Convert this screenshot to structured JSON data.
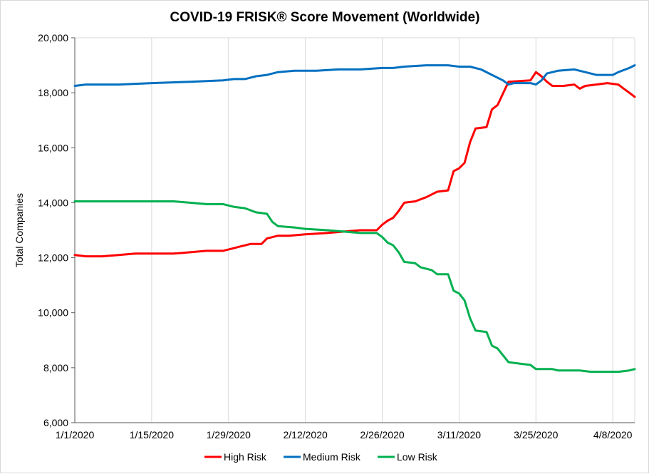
{
  "chart_data": {
    "type": "line",
    "title": "COVID-19 FRISK® Score Movement (Worldwide)",
    "xlabel": "",
    "ylabel": "Total Companies",
    "ylim": [
      6000,
      20000
    ],
    "yticks": [
      6000,
      8000,
      10000,
      12000,
      14000,
      16000,
      18000,
      20000
    ],
    "ytick_labels": [
      "6,000",
      "8,000",
      "10,000",
      "12,000",
      "14,000",
      "16,000",
      "18,000",
      "20,000"
    ],
    "x_start": "1/1/2020",
    "x_end": "4/12/2020",
    "xticks": [
      "1/1/2020",
      "1/15/2020",
      "1/29/2020",
      "2/12/2020",
      "2/26/2020",
      "3/11/2020",
      "3/25/2020",
      "4/8/2020"
    ],
    "grid": "vertical",
    "legend": "bottom",
    "series": [
      {
        "name": "High Risk",
        "color": "#ff0000",
        "points": [
          [
            "1/1/2020",
            12100
          ],
          [
            "1/3/2020",
            12050
          ],
          [
            "1/6/2020",
            12050
          ],
          [
            "1/9/2020",
            12100
          ],
          [
            "1/12/2020",
            12150
          ],
          [
            "1/15/2020",
            12150
          ],
          [
            "1/19/2020",
            12150
          ],
          [
            "1/22/2020",
            12200
          ],
          [
            "1/25/2020",
            12250
          ],
          [
            "1/28/2020",
            12250
          ],
          [
            "1/30/2020",
            12350
          ],
          [
            "1/31/2020",
            12400
          ],
          [
            "2/2/2020",
            12500
          ],
          [
            "2/4/2020",
            12500
          ],
          [
            "2/5/2020",
            12700
          ],
          [
            "2/7/2020",
            12800
          ],
          [
            "2/9/2020",
            12800
          ],
          [
            "2/12/2020",
            12850
          ],
          [
            "2/16/2020",
            12900
          ],
          [
            "2/19/2020",
            12950
          ],
          [
            "2/22/2020",
            13000
          ],
          [
            "2/25/2020",
            13000
          ],
          [
            "2/26/2020",
            13200
          ],
          [
            "2/27/2020",
            13350
          ],
          [
            "2/28/2020",
            13450
          ],
          [
            "2/29/2020",
            13700
          ],
          [
            "3/1/2020",
            14000
          ],
          [
            "3/3/2020",
            14050
          ],
          [
            "3/5/2020",
            14200
          ],
          [
            "3/7/2020",
            14400
          ],
          [
            "3/9/2020",
            14450
          ],
          [
            "3/10/2020",
            15150
          ],
          [
            "3/11/2020",
            15250
          ],
          [
            "3/12/2020",
            15450
          ],
          [
            "3/13/2020",
            16200
          ],
          [
            "3/14/2020",
            16700
          ],
          [
            "3/16/2020",
            16750
          ],
          [
            "3/17/2020",
            17400
          ],
          [
            "3/18/2020",
            17550
          ],
          [
            "3/20/2020",
            18400
          ],
          [
            "3/24/2020",
            18450
          ],
          [
            "3/25/2020",
            18750
          ],
          [
            "3/26/2020",
            18600
          ],
          [
            "3/27/2020",
            18400
          ],
          [
            "3/28/2020",
            18250
          ],
          [
            "3/30/2020",
            18250
          ],
          [
            "4/1/2020",
            18300
          ],
          [
            "4/2/2020",
            18150
          ],
          [
            "4/3/2020",
            18250
          ],
          [
            "4/5/2020",
            18300
          ],
          [
            "4/7/2020",
            18350
          ],
          [
            "4/9/2020",
            18300
          ],
          [
            "4/10/2020",
            18150
          ],
          [
            "4/11/2020",
            18000
          ],
          [
            "4/12/2020",
            17850
          ]
        ]
      },
      {
        "name": "Medium Risk",
        "color": "#0070c0",
        "points": [
          [
            "1/1/2020",
            18250
          ],
          [
            "1/3/2020",
            18300
          ],
          [
            "1/9/2020",
            18300
          ],
          [
            "1/15/2020",
            18350
          ],
          [
            "1/22/2020",
            18400
          ],
          [
            "1/28/2020",
            18450
          ],
          [
            "1/30/2020",
            18500
          ],
          [
            "2/1/2020",
            18500
          ],
          [
            "2/3/2020",
            18600
          ],
          [
            "2/5/2020",
            18650
          ],
          [
            "2/7/2020",
            18750
          ],
          [
            "2/10/2020",
            18800
          ],
          [
            "2/14/2020",
            18800
          ],
          [
            "2/18/2020",
            18850
          ],
          [
            "2/22/2020",
            18850
          ],
          [
            "2/26/2020",
            18900
          ],
          [
            "2/28/2020",
            18900
          ],
          [
            "3/1/2020",
            18950
          ],
          [
            "3/5/2020",
            19000
          ],
          [
            "3/9/2020",
            19000
          ],
          [
            "3/11/2020",
            18950
          ],
          [
            "3/13/2020",
            18950
          ],
          [
            "3/15/2020",
            18850
          ],
          [
            "3/17/2020",
            18650
          ],
          [
            "3/19/2020",
            18450
          ],
          [
            "3/20/2020",
            18300
          ],
          [
            "3/21/2020",
            18350
          ],
          [
            "3/24/2020",
            18350
          ],
          [
            "3/25/2020",
            18300
          ],
          [
            "3/26/2020",
            18450
          ],
          [
            "3/27/2020",
            18700
          ],
          [
            "3/29/2020",
            18800
          ],
          [
            "4/1/2020",
            18850
          ],
          [
            "4/3/2020",
            18750
          ],
          [
            "4/5/2020",
            18650
          ],
          [
            "4/8/2020",
            18650
          ],
          [
            "4/9/2020",
            18750
          ],
          [
            "4/11/2020",
            18900
          ],
          [
            "4/12/2020",
            19000
          ]
        ]
      },
      {
        "name": "Low Risk",
        "color": "#00b050",
        "points": [
          [
            "1/1/2020",
            14050
          ],
          [
            "1/3/2020",
            14050
          ],
          [
            "1/8/2020",
            14050
          ],
          [
            "1/12/2020",
            14050
          ],
          [
            "1/15/2020",
            14050
          ],
          [
            "1/19/2020",
            14050
          ],
          [
            "1/22/2020",
            14000
          ],
          [
            "1/25/2020",
            13950
          ],
          [
            "1/28/2020",
            13950
          ],
          [
            "1/30/2020",
            13850
          ],
          [
            "2/1/2020",
            13800
          ],
          [
            "2/3/2020",
            13650
          ],
          [
            "2/5/2020",
            13600
          ],
          [
            "2/6/2020",
            13300
          ],
          [
            "2/7/2020",
            13150
          ],
          [
            "2/10/2020",
            13100
          ],
          [
            "2/12/2020",
            13050
          ],
          [
            "2/16/2020",
            13000
          ],
          [
            "2/19/2020",
            12950
          ],
          [
            "2/22/2020",
            12900
          ],
          [
            "2/25/2020",
            12900
          ],
          [
            "2/26/2020",
            12750
          ],
          [
            "2/27/2020",
            12550
          ],
          [
            "2/28/2020",
            12450
          ],
          [
            "2/29/2020",
            12200
          ],
          [
            "3/1/2020",
            11850
          ],
          [
            "3/3/2020",
            11800
          ],
          [
            "3/4/2020",
            11650
          ],
          [
            "3/6/2020",
            11550
          ],
          [
            "3/7/2020",
            11400
          ],
          [
            "3/9/2020",
            11400
          ],
          [
            "3/10/2020",
            10800
          ],
          [
            "3/11/2020",
            10700
          ],
          [
            "3/12/2020",
            10450
          ],
          [
            "3/13/2020",
            9800
          ],
          [
            "3/14/2020",
            9350
          ],
          [
            "3/16/2020",
            9300
          ],
          [
            "3/17/2020",
            8800
          ],
          [
            "3/18/2020",
            8700
          ],
          [
            "3/19/2020",
            8450
          ],
          [
            "3/20/2020",
            8200
          ],
          [
            "3/22/2020",
            8150
          ],
          [
            "3/24/2020",
            8100
          ],
          [
            "3/25/2020",
            7950
          ],
          [
            "3/28/2020",
            7950
          ],
          [
            "3/29/2020",
            7900
          ],
          [
            "4/2/2020",
            7900
          ],
          [
            "4/4/2020",
            7850
          ],
          [
            "4/9/2020",
            7850
          ],
          [
            "4/11/2020",
            7900
          ],
          [
            "4/12/2020",
            7950
          ]
        ]
      }
    ]
  }
}
